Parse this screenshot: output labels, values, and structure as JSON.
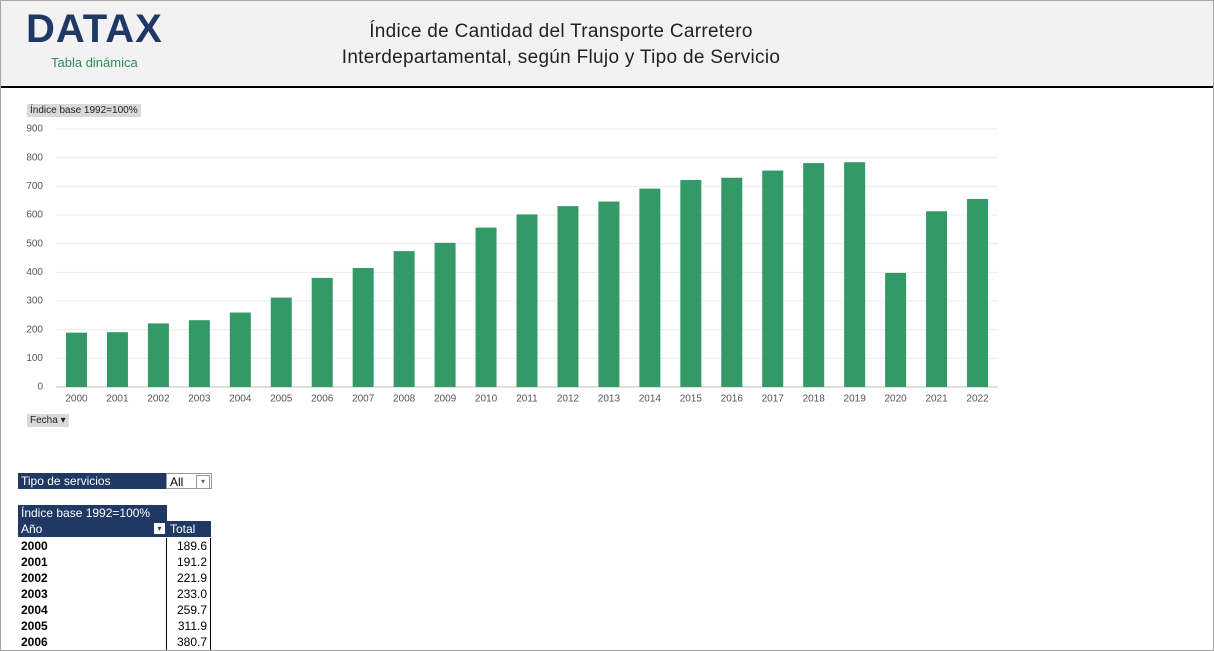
{
  "header": {
    "logo": "DATAX",
    "subtitle": "Tabla dinámica",
    "title": [
      "Índice de Cantidad del Transporte Carretero",
      "Interdepartamental, según Flujo y Tipo de Servicio"
    ]
  },
  "chart_data": {
    "type": "bar",
    "y_label": "Índice base 1992=100%",
    "x_filter": "Fecha",
    "categories": [
      "2000",
      "2001",
      "2002",
      "2003",
      "2004",
      "2005",
      "2006",
      "2007",
      "2008",
      "2009",
      "2010",
      "2011",
      "2012",
      "2013",
      "2014",
      "2015",
      "2016",
      "2017",
      "2018",
      "2019",
      "2020",
      "2021",
      "2022"
    ],
    "values": [
      189.6,
      191.2,
      221.9,
      233.0,
      259.7,
      311.9,
      380.7,
      415,
      474,
      503,
      556,
      602,
      631,
      647,
      692,
      722,
      730,
      755,
      781,
      784,
      398,
      613,
      656
    ],
    "color": "#339966",
    "ylim": [
      0,
      900
    ],
    "yticks": [
      0,
      100,
      200,
      300,
      400,
      500,
      600,
      700,
      800,
      900
    ],
    "grid": true
  },
  "filter": {
    "label": "Tipo de servicios",
    "value": "All"
  },
  "table": {
    "caption": "Índice base 1992=100%",
    "columns": [
      "Año",
      "Total"
    ],
    "rows": [
      [
        "2000",
        "189.6"
      ],
      [
        "2001",
        "191.2"
      ],
      [
        "2002",
        "221.9"
      ],
      [
        "2003",
        "233.0"
      ],
      [
        "2004",
        "259.7"
      ],
      [
        "2005",
        "311.9"
      ],
      [
        "2006",
        "380.7"
      ]
    ]
  }
}
